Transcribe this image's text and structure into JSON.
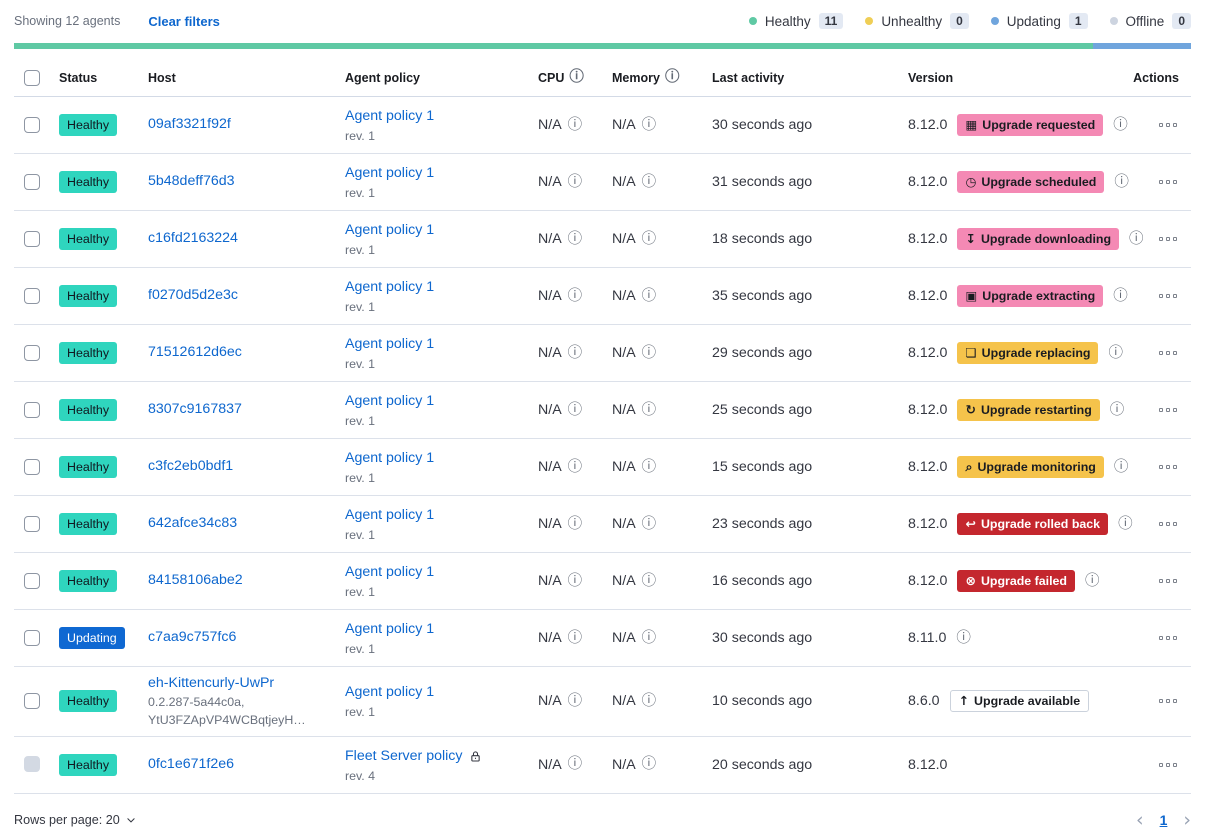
{
  "header_bar": {
    "showing": "Showing 12 agents",
    "clear_filters_label": "Clear filters",
    "legend": [
      {
        "label": "Healthy",
        "count": "11",
        "color": "#5FC9A4"
      },
      {
        "label": "Unhealthy",
        "count": "0",
        "color": "#EFCE55"
      },
      {
        "label": "Updating",
        "count": "1",
        "color": "#70A5DD"
      },
      {
        "label": "Offline",
        "count": "0",
        "color": "#CDD4E0"
      }
    ],
    "progress": {
      "healthy_pct": 91.7,
      "updating_pct": 8.3,
      "healthy_color": "#5FC9A4",
      "updating_color": "#70A5DD"
    }
  },
  "colors": {
    "healthy_badge": "#2FD5BE",
    "updating_badge": "#0F68D2",
    "pink_badge": "#F489B4",
    "yellow_badge": "#F5C34B",
    "red_badge": "#C4272E",
    "link": "#0E67CE"
  },
  "table": {
    "columns": {
      "status": "Status",
      "host": "Host",
      "policy": "Agent policy",
      "cpu": "CPU",
      "memory": "Memory",
      "activity": "Last activity",
      "version": "Version",
      "actions": "Actions"
    },
    "rows": [
      {
        "status": "Healthy",
        "status_variant": "healthy",
        "host": "09af3321f92f",
        "policy": "Agent policy 1",
        "policy_rev": "rev. 1",
        "cpu": "N/A",
        "memory": "N/A",
        "last_activity": "30 seconds ago",
        "version": "8.12.0",
        "upgrade": {
          "variant": "pink",
          "icon_name": "calendar-icon",
          "icon": "▦",
          "label": "Upgrade requested"
        },
        "info": "true"
      },
      {
        "status": "Healthy",
        "status_variant": "healthy",
        "host": "5b48deff76d3",
        "policy": "Agent policy 1",
        "policy_rev": "rev. 1",
        "cpu": "N/A",
        "memory": "N/A",
        "last_activity": "31 seconds ago",
        "version": "8.12.0",
        "upgrade": {
          "variant": "pink",
          "icon_name": "clock-icon",
          "icon": "◷",
          "label": "Upgrade scheduled"
        },
        "info": "true"
      },
      {
        "status": "Healthy",
        "status_variant": "healthy",
        "host": "c16fd2163224",
        "policy": "Agent policy 1",
        "policy_rev": "rev. 1",
        "cpu": "N/A",
        "memory": "N/A",
        "last_activity": "18 seconds ago",
        "version": "8.12.0",
        "upgrade": {
          "variant": "pink",
          "icon_name": "download-icon",
          "icon": "↧",
          "label": "Upgrade downloading"
        },
        "info": "true"
      },
      {
        "status": "Healthy",
        "status_variant": "healthy",
        "host": "f0270d5d2e3c",
        "policy": "Agent policy 1",
        "policy_rev": "rev. 1",
        "cpu": "N/A",
        "memory": "N/A",
        "last_activity": "35 seconds ago",
        "version": "8.12.0",
        "upgrade": {
          "variant": "pink",
          "icon_name": "package-icon",
          "icon": "▣",
          "label": "Upgrade extracting"
        },
        "info": "true"
      },
      {
        "status": "Healthy",
        "status_variant": "healthy",
        "host": "71512612d6ec",
        "policy": "Agent policy 1",
        "policy_rev": "rev. 1",
        "cpu": "N/A",
        "memory": "N/A",
        "last_activity": "29 seconds ago",
        "version": "8.12.0",
        "upgrade": {
          "variant": "yellow",
          "icon_name": "document-icon",
          "icon": "❏",
          "label": "Upgrade replacing"
        },
        "info": "true"
      },
      {
        "status": "Healthy",
        "status_variant": "healthy",
        "host": "8307c9167837",
        "policy": "Agent policy 1",
        "policy_rev": "rev. 1",
        "cpu": "N/A",
        "memory": "N/A",
        "last_activity": "25 seconds ago",
        "version": "8.12.0",
        "upgrade": {
          "variant": "yellow",
          "icon_name": "refresh-icon",
          "icon": "↻",
          "label": "Upgrade restarting"
        },
        "info": "true"
      },
      {
        "status": "Healthy",
        "status_variant": "healthy",
        "host": "c3fc2eb0bdf1",
        "policy": "Agent policy 1",
        "policy_rev": "rev. 1",
        "cpu": "N/A",
        "memory": "N/A",
        "last_activity": "15 seconds ago",
        "version": "8.12.0",
        "upgrade": {
          "variant": "yellow",
          "icon_name": "inspect-icon",
          "icon": "⌕",
          "label": "Upgrade monitoring"
        },
        "info": "true"
      },
      {
        "status": "Healthy",
        "status_variant": "healthy",
        "host": "642afce34c83",
        "policy": "Agent policy 1",
        "policy_rev": "rev. 1",
        "cpu": "N/A",
        "memory": "N/A",
        "last_activity": "23 seconds ago",
        "version": "8.12.0",
        "upgrade": {
          "variant": "red",
          "icon_name": "return-arrow-icon",
          "icon": "↩",
          "label": "Upgrade rolled back"
        },
        "info": "true"
      },
      {
        "status": "Healthy",
        "status_variant": "healthy",
        "host": "84158106abe2",
        "policy": "Agent policy 1",
        "policy_rev": "rev. 1",
        "cpu": "N/A",
        "memory": "N/A",
        "last_activity": "16 seconds ago",
        "version": "8.12.0",
        "upgrade": {
          "variant": "red",
          "icon_name": "error-cross-icon",
          "icon": "⊗",
          "label": "Upgrade failed"
        },
        "info": "true"
      },
      {
        "status": "Updating",
        "status_variant": "updating",
        "host": "c7aa9c757fc6",
        "policy": "Agent policy 1",
        "policy_rev": "rev. 1",
        "cpu": "N/A",
        "memory": "N/A",
        "last_activity": "30 seconds ago",
        "version": "8.11.0",
        "info": "true"
      },
      {
        "status": "Healthy",
        "status_variant": "healthy",
        "host": "eh-Kittencurly-UwPr",
        "host_sub1": "0.2.287-5a44c0a,",
        "host_sub2": "YtU3FZApVP4WCBqtjeyH…",
        "policy": "Agent policy 1",
        "policy_rev": "rev. 1",
        "cpu": "N/A",
        "memory": "N/A",
        "last_activity": "10 seconds ago",
        "version": "8.6.0",
        "upgrade": {
          "variant": "hollow",
          "icon_name": "arrow-up-icon",
          "icon": "↑",
          "label": "Upgrade available"
        }
      },
      {
        "status": "Healthy",
        "status_variant": "healthy",
        "host": "0fc1e671f2e6",
        "policy": "Fleet Server policy",
        "policy_rev": "rev. 4",
        "policy_lock": "true",
        "checkbox_disabled": "true",
        "cpu": "N/A",
        "memory": "N/A",
        "last_activity": "20 seconds ago",
        "version": "8.12.0"
      }
    ]
  },
  "footer": {
    "rows_per_page_label": "Rows per page: 20",
    "page": "1",
    "prev": "‹",
    "next": "›"
  }
}
